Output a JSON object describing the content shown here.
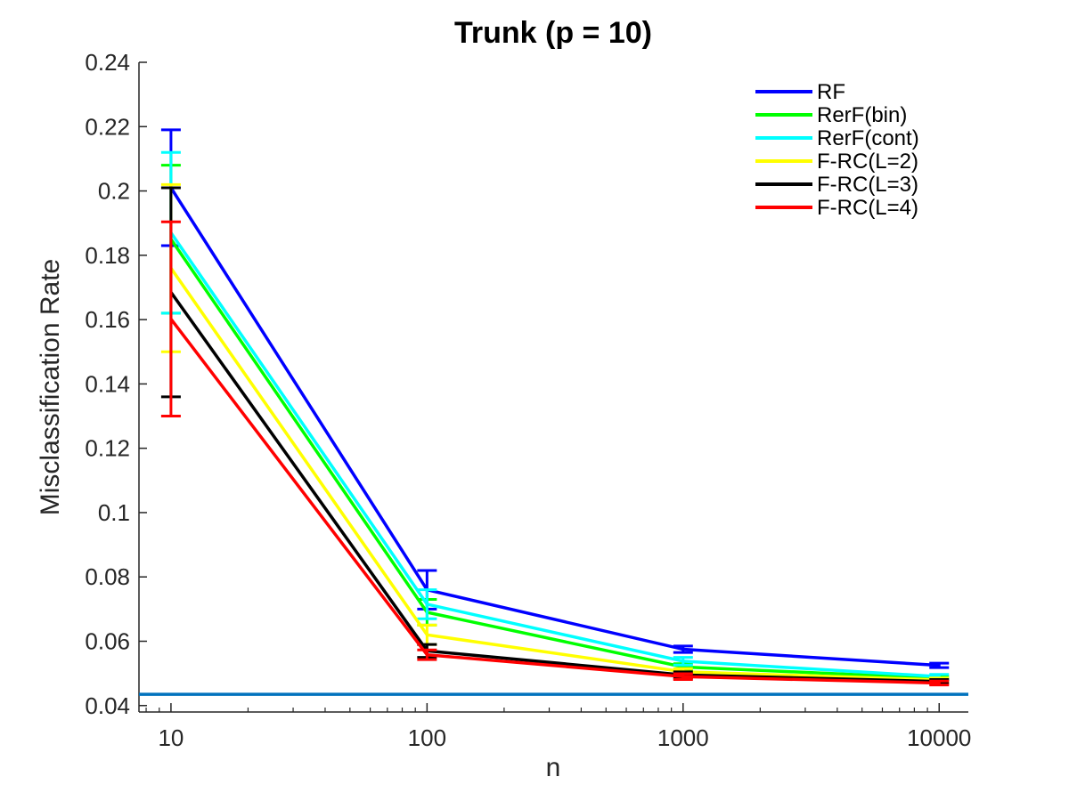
{
  "chart_data": {
    "type": "line",
    "title": "Trunk (p = 10)",
    "xlabel": "n",
    "ylabel": "Misclassification Rate",
    "xscale": "log",
    "xlim": [
      7.5,
      13000
    ],
    "ylim": [
      0.038,
      0.24
    ],
    "x": [
      10,
      100,
      1000,
      10000
    ],
    "xticks": [
      10,
      100,
      1000,
      10000
    ],
    "xtick_labels": [
      "10",
      "100",
      "1000",
      "10000"
    ],
    "yticks": [
      0.04,
      0.06,
      0.08,
      0.1,
      0.12,
      0.14,
      0.16,
      0.18,
      0.2,
      0.22,
      0.24
    ],
    "ytick_labels": [
      "0.04",
      "0.06",
      "0.08",
      "0.1",
      "0.12",
      "0.14",
      "0.16",
      "0.18",
      "0.2",
      "0.22",
      "0.24"
    ],
    "grid": false,
    "legend_position": "top-right",
    "series": [
      {
        "name": "RF",
        "color": "#0000ff",
        "values": [
          0.201,
          0.076,
          0.0575,
          0.0525
        ],
        "err": [
          0.018,
          0.006,
          0.001,
          0.0007
        ]
      },
      {
        "name": "RerF(bin)",
        "color": "#00ff00",
        "values": [
          0.185,
          0.069,
          0.052,
          0.0485
        ],
        "err": [
          0.023,
          0.004,
          0.001,
          0.0006
        ]
      },
      {
        "name": "RerF(cont)",
        "color": "#00ffff",
        "values": [
          0.187,
          0.0715,
          0.0538,
          0.049
        ],
        "err": [
          0.025,
          0.0045,
          0.0012,
          0.0007
        ]
      },
      {
        "name": "F-RC(L=2)",
        "color": "#ffff00",
        "values": [
          0.176,
          0.062,
          0.0505,
          0.048
        ],
        "err": [
          0.026,
          0.003,
          0.001,
          0.0006
        ]
      },
      {
        "name": "F-RC(L=3)",
        "color": "#000000",
        "values": [
          0.1685,
          0.057,
          0.0495,
          0.0475
        ],
        "err": [
          0.0325,
          0.002,
          0.001,
          0.0006
        ]
      },
      {
        "name": "F-RC(L=4)",
        "color": "#ff0000",
        "values": [
          0.1602,
          0.0558,
          0.049,
          0.047
        ],
        "err": [
          0.0302,
          0.0015,
          0.0009,
          0.0006
        ]
      }
    ],
    "reference_line": {
      "y": 0.0435,
      "color": "#0072bd"
    }
  }
}
